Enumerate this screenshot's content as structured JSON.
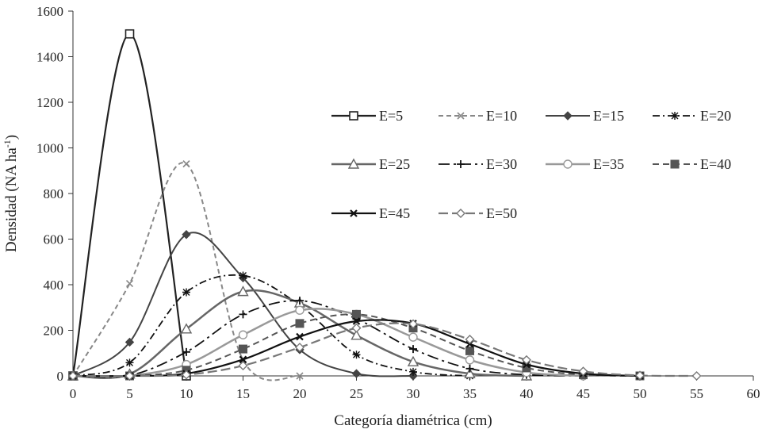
{
  "chart_data": {
    "type": "line",
    "title": "",
    "xlabel": "Categoría diamétrica (cm)",
    "ylabel": "Densidad (NA ha",
    "ylabel_sup": "-1",
    "ylabel_end": ")",
    "xlim": [
      0,
      60
    ],
    "ylim": [
      0,
      1600
    ],
    "xticks": [
      0,
      5,
      10,
      15,
      20,
      25,
      30,
      35,
      40,
      45,
      50,
      55,
      60
    ],
    "yticks": [
      0,
      200,
      400,
      600,
      800,
      1000,
      1200,
      1400,
      1600
    ],
    "grid": false,
    "legend_position": "right",
    "series": [
      {
        "name": "E=5",
        "color": "#222222",
        "dash": "",
        "width": 2.2,
        "marker": "open-square",
        "x": [
          0,
          5,
          10
        ],
        "y": [
          0,
          1500,
          0
        ]
      },
      {
        "name": "E=10",
        "color": "#888888",
        "dash": "6,4",
        "width": 2,
        "marker": "x",
        "x": [
          0,
          5,
          10,
          15,
          20
        ],
        "y": [
          0,
          405,
          930,
          70,
          0
        ]
      },
      {
        "name": "E=15",
        "color": "#444444",
        "dash": "",
        "width": 2,
        "marker": "diamond",
        "x": [
          0,
          5,
          10,
          15,
          20,
          25,
          30
        ],
        "y": [
          0,
          148,
          620,
          430,
          115,
          10,
          0
        ]
      },
      {
        "name": "E=20",
        "color": "#111111",
        "dash": "9,4,2,4",
        "width": 1.8,
        "marker": "asterisk",
        "x": [
          0,
          5,
          10,
          15,
          20,
          25,
          30,
          35
        ],
        "y": [
          0,
          58,
          367,
          440,
          310,
          93,
          18,
          0
        ]
      },
      {
        "name": "E=25",
        "color": "#666666",
        "dash": "",
        "width": 2.5,
        "marker": "open-triangle",
        "x": [
          0,
          5,
          10,
          15,
          20,
          25,
          30,
          35,
          40
        ],
        "y": [
          0,
          8,
          206,
          370,
          320,
          178,
          62,
          10,
          0
        ]
      },
      {
        "name": "E=30",
        "color": "#111111",
        "dash": "14,5,3,5",
        "width": 1.8,
        "marker": "plus",
        "x": [
          0,
          5,
          10,
          15,
          20,
          25,
          30,
          35,
          40,
          45
        ],
        "y": [
          0,
          2,
          105,
          270,
          330,
          250,
          118,
          32,
          5,
          0
        ]
      },
      {
        "name": "E=35",
        "color": "#999999",
        "dash": "",
        "width": 2.5,
        "marker": "open-circle",
        "x": [
          0,
          5,
          10,
          15,
          20,
          25,
          30,
          35,
          40,
          45
        ],
        "y": [
          0,
          1,
          50,
          180,
          288,
          270,
          170,
          70,
          15,
          0
        ]
      },
      {
        "name": "E=40",
        "color": "#555555",
        "dash": "8,5",
        "width": 2,
        "marker": "filled-square",
        "x": [
          0,
          5,
          10,
          15,
          20,
          25,
          30,
          35,
          40,
          45,
          50
        ],
        "y": [
          0,
          0,
          25,
          118,
          230,
          270,
          210,
          110,
          35,
          5,
          0
        ]
      },
      {
        "name": "E=45",
        "color": "#111111",
        "dash": "",
        "width": 2.2,
        "marker": "x-bold",
        "x": [
          0,
          5,
          10,
          15,
          20,
          25,
          30,
          35,
          40,
          45,
          50
        ],
        "y": [
          0,
          0,
          10,
          72,
          172,
          240,
          230,
          140,
          50,
          10,
          0
        ]
      },
      {
        "name": "E=50",
        "color": "#777777",
        "dash": "12,5",
        "width": 2.2,
        "marker": "open-diamond",
        "x": [
          0,
          5,
          10,
          15,
          20,
          25,
          30,
          35,
          40,
          45,
          50,
          55
        ],
        "y": [
          0,
          0,
          5,
          45,
          125,
          210,
          228,
          160,
          70,
          20,
          2,
          0
        ]
      }
    ]
  }
}
